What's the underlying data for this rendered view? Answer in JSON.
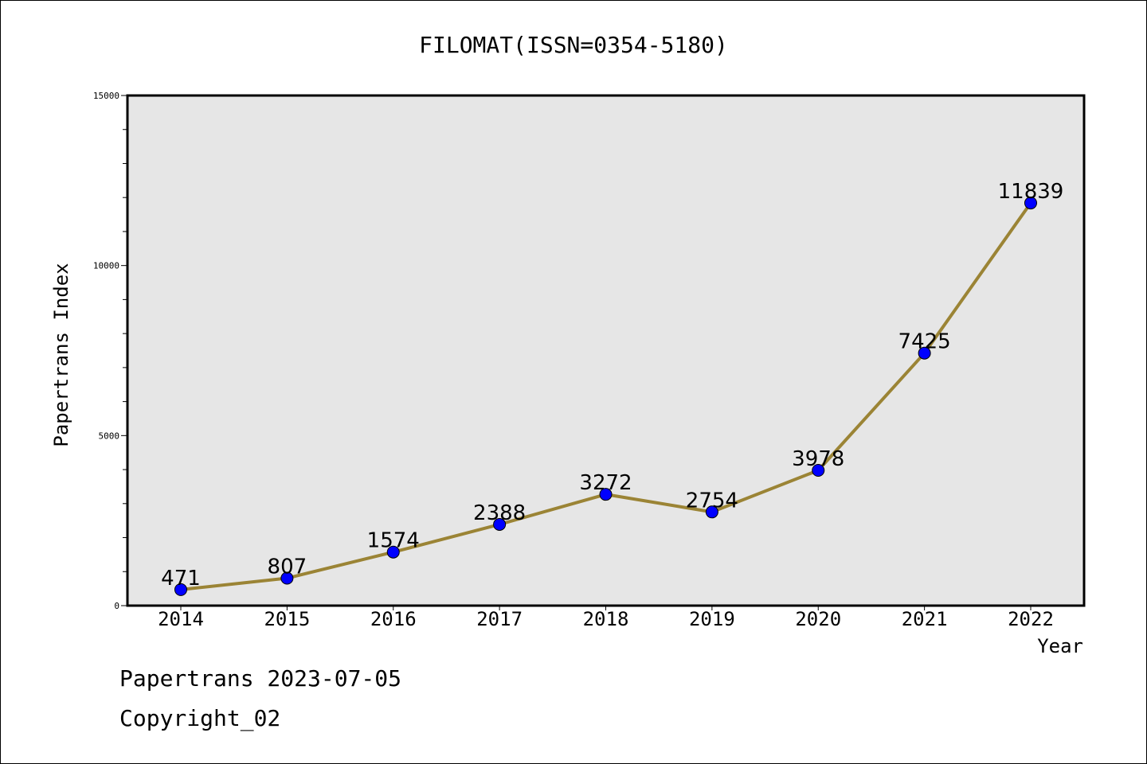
{
  "chart_data": {
    "type": "line",
    "title": "FILOMAT(ISSN=0354-5180)",
    "xlabel": "Year",
    "ylabel": "Papertrans Index",
    "categories": [
      "2014",
      "2015",
      "2016",
      "2017",
      "2018",
      "2019",
      "2020",
      "2021",
      "2022"
    ],
    "series": [
      {
        "values": [
          471,
          807,
          1574,
          2388,
          3272,
          2754,
          3978,
          7425,
          11839
        ]
      }
    ],
    "data_labels": [
      "471",
      "807",
      "1574",
      "2388",
      "3272",
      "2754",
      "3978",
      "7425",
      "11839"
    ],
    "ylim": [
      0,
      15000
    ],
    "y_ticks": [
      "0",
      "5000",
      "10000",
      "15000"
    ],
    "grid": false,
    "colors": {
      "line": "#9b8435",
      "marker": "#0000ff",
      "plot_background": "#e6e6e6"
    }
  },
  "footer": {
    "line1": "Papertrans 2023-07-05",
    "line2": "Copyright_02"
  }
}
